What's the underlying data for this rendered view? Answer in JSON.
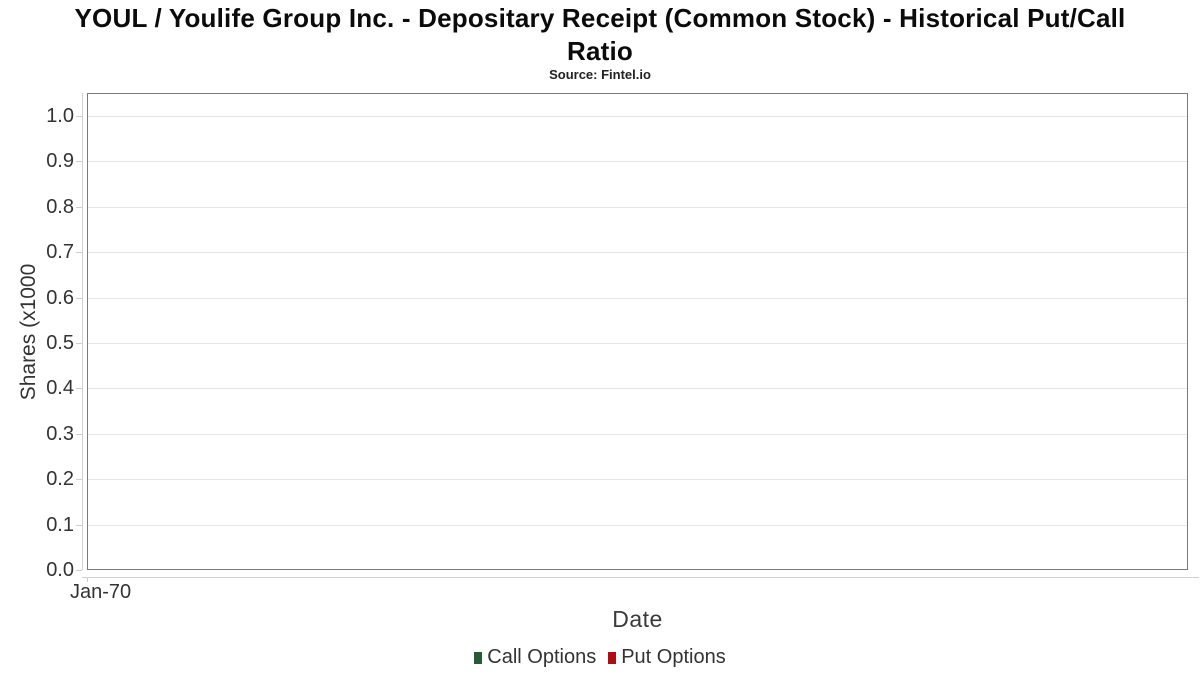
{
  "title": {
    "line1": "YOUL / Youlife Group Inc. - Depositary Receipt (Common Stock) - Historical Put/Call",
    "line2": "Ratio",
    "source": "Source: Fintel.io"
  },
  "chart_data": {
    "type": "bar",
    "title": "YOUL / Youlife Group Inc. - Depositary Receipt (Common Stock) - Historical Put/Call Ratio",
    "subtitle": "Source: Fintel.io",
    "xlabel": "Date",
    "ylabel": "Shares (x1000",
    "x_ticks": [
      "Jan-70"
    ],
    "y_ticks": [
      "1.0",
      "0.9",
      "0.8",
      "0.7",
      "0.6",
      "0.5",
      "0.4",
      "0.3",
      "0.2",
      "0.1",
      "0.0"
    ],
    "ylim": [
      0.0,
      1.05
    ],
    "grid": true,
    "legend_position": "bottom",
    "series": [
      {
        "name": "Call Options",
        "color": "#265b35",
        "values": []
      },
      {
        "name": "Put Options",
        "color": "#b00d12",
        "values": []
      }
    ],
    "note": "empty chart - no data points plotted"
  },
  "colors": {
    "plot_border": "#7a7a7a",
    "grid_line": "#e6e6e6",
    "axis_line": "#d0d0d0",
    "text": "#333333",
    "title_text": "#0b0b0b"
  }
}
